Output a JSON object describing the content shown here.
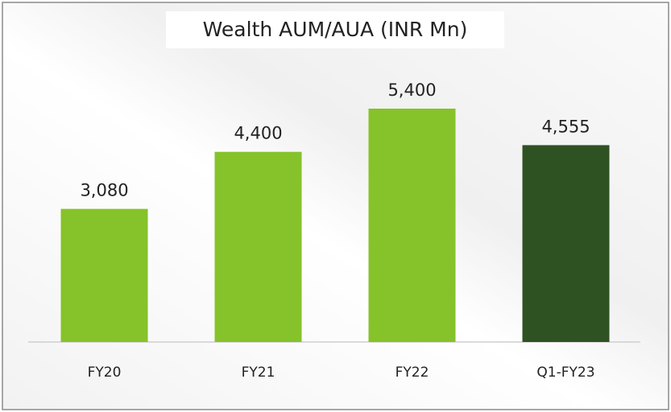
{
  "chart_data": {
    "type": "bar",
    "title": "Wealth AUM/AUA (INR Mn)",
    "categories": [
      "FY20",
      "FY21",
      "FY22",
      "Q1-FY23"
    ],
    "values": [
      3080,
      4400,
      5400,
      4555
    ],
    "value_labels": [
      "3,080",
      "4,400",
      "5,400",
      "4,555"
    ],
    "colors": [
      "#86c22a",
      "#86c22a",
      "#86c22a",
      "#2f5222"
    ]
  }
}
